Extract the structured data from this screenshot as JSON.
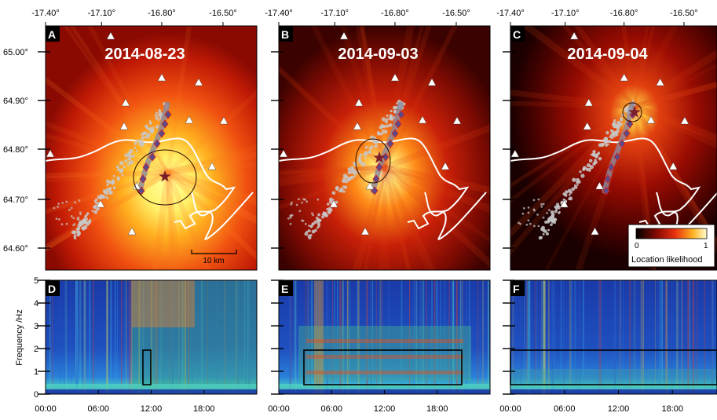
{
  "map_panels": [
    {
      "letter": "A",
      "date": "2014-08-23"
    },
    {
      "letter": "B",
      "date": "2014-09-03"
    },
    {
      "letter": "C",
      "date": "2014-09-04"
    }
  ],
  "spec_panels": [
    {
      "letter": "D"
    },
    {
      "letter": "E"
    },
    {
      "letter": "F"
    }
  ],
  "lon_ticks": [
    "-17.40°",
    "-17.10°",
    "-16.80°",
    "-16.50°"
  ],
  "lat_ticks": [
    "65.00°",
    "64.90°",
    "64.80°",
    "64.70°",
    "64.60°"
  ],
  "freq_ticks": [
    "5",
    "4",
    "3",
    "2",
    "1",
    "0"
  ],
  "freq_label": "Frequency /Hz",
  "time_ticks": [
    "00:00",
    "06:00",
    "12:00",
    "18:00"
  ],
  "scale_bar": "10 km",
  "colorbar": {
    "min": "0",
    "max": "1",
    "label": "Location likelihood"
  },
  "colors": {
    "star": "#7a1f2a",
    "diamond": "#5a4a8a",
    "coast": "#ffffff",
    "dike": "#c8c8c8"
  }
}
